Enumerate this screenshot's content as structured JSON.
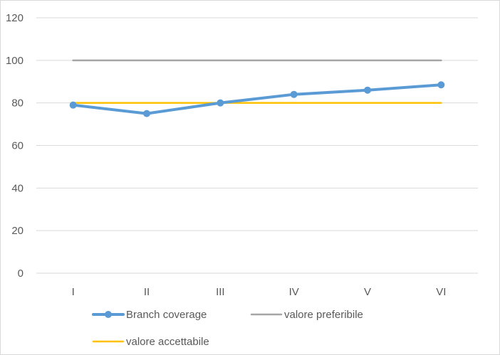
{
  "chart_data": {
    "type": "line",
    "categories": [
      "I",
      "II",
      "III",
      "IV",
      "V",
      "VI"
    ],
    "ylim": [
      0,
      120
    ],
    "yticks": [
      0,
      20,
      40,
      60,
      80,
      100,
      120
    ],
    "grid": true,
    "legend_position": "bottom",
    "series": [
      {
        "name": "Branch coverage",
        "values": [
          79,
          75,
          80,
          84,
          86,
          88.5
        ],
        "color": "#5b9bd5",
        "markers": true
      },
      {
        "name": "valore preferibile",
        "values": [
          100,
          100,
          100,
          100,
          100,
          100
        ],
        "color": "#a5a5a5",
        "markers": false
      },
      {
        "name": "valore accettabile",
        "values": [
          80,
          80,
          80,
          80,
          80,
          80
        ],
        "color": "#ffc000",
        "markers": false
      }
    ]
  }
}
